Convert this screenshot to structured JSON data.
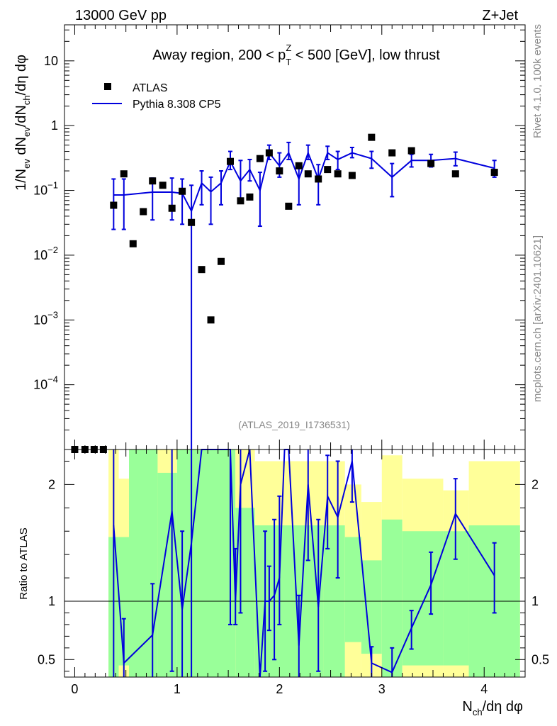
{
  "header": {
    "left": "13000 GeV pp",
    "right": "Z+Jet"
  },
  "side": {
    "rivet": "Rivet 4.1.0,  100k events",
    "mcplots": "mcplots.cern.ch [arXiv:2401.10621]"
  },
  "colors": {
    "mc": "#0000dd",
    "data": "#000000",
    "band_inner": "#99ff99",
    "band_outer": "#ffff99"
  },
  "chart_data": [
    {
      "type": "scatter",
      "title": "Away region, 200 < p_T^Z < 500 [GeV], low thrust",
      "title_parts": {
        "pre": "Away region, 200 < p",
        "sup": "Z",
        "sub": "T",
        "post": " < 500 [GeV], low thrust"
      },
      "watermark": "(ATLAS_2019_I1736531)",
      "ylabel": "1/N_ev dN_ev/dN_ch/dη dφ",
      "ylabel_parts": [
        "1/N",
        "ev",
        " dN",
        "ev",
        "/dN",
        "ch",
        "/dη dφ"
      ],
      "yscale": "log",
      "ylim": [
        1e-05,
        36
      ],
      "xlim": [
        -0.1,
        4.4
      ],
      "ytick_labels": [
        {
          "v": 10,
          "base": "10",
          "exp": ""
        },
        {
          "v": 1,
          "base": "1",
          "exp": ""
        },
        {
          "v": 0.1,
          "base": "10",
          "exp": "−1"
        },
        {
          "v": 0.01,
          "base": "10",
          "exp": "−2"
        },
        {
          "v": 0.001,
          "base": "10",
          "exp": "−3"
        },
        {
          "v": 0.0001,
          "base": "10",
          "exp": "−4"
        }
      ],
      "legend": {
        "data_label": "ATLAS",
        "mc_label": "Pythia 8.308 CP5",
        "position": "top-left"
      },
      "data_points": [
        {
          "x": 0.0,
          "y": 1e-05
        },
        {
          "x": 0.1,
          "y": 1e-05
        },
        {
          "x": 0.19,
          "y": 1e-05
        },
        {
          "x": 0.28,
          "y": 1e-05
        },
        {
          "x": 0.38,
          "y": 0.059
        },
        {
          "x": 0.48,
          "y": 0.18
        },
        {
          "x": 0.57,
          "y": 0.015
        },
        {
          "x": 0.67,
          "y": 0.047
        },
        {
          "x": 0.76,
          "y": 0.14
        },
        {
          "x": 0.86,
          "y": 0.12
        },
        {
          "x": 0.95,
          "y": 0.053
        },
        {
          "x": 1.05,
          "y": 0.097
        },
        {
          "x": 1.14,
          "y": 0.032
        },
        {
          "x": 1.24,
          "y": 0.006
        },
        {
          "x": 1.33,
          "y": 0.001
        },
        {
          "x": 1.43,
          "y": 0.008
        },
        {
          "x": 1.52,
          "y": 0.28
        },
        {
          "x": 1.62,
          "y": 0.069
        },
        {
          "x": 1.71,
          "y": 0.079
        },
        {
          "x": 1.81,
          "y": 0.31
        },
        {
          "x": 1.9,
          "y": 0.38
        },
        {
          "x": 2.0,
          "y": 0.2
        },
        {
          "x": 2.09,
          "y": 0.057
        },
        {
          "x": 2.19,
          "y": 0.24
        },
        {
          "x": 2.28,
          "y": 0.18
        },
        {
          "x": 2.38,
          "y": 0.15
        },
        {
          "x": 2.47,
          "y": 0.21
        },
        {
          "x": 2.57,
          "y": 0.18
        },
        {
          "x": 2.71,
          "y": 0.17
        },
        {
          "x": 2.9,
          "y": 0.66
        },
        {
          "x": 3.1,
          "y": 0.38
        },
        {
          "x": 3.29,
          "y": 0.41
        },
        {
          "x": 3.48,
          "y": 0.26
        },
        {
          "x": 3.72,
          "y": 0.18
        },
        {
          "x": 4.1,
          "y": 0.19
        }
      ],
      "mc_points": [
        {
          "x": 0.38,
          "y": 0.085,
          "lo": 0.025,
          "hi": 0.15
        },
        {
          "x": 0.48,
          "y": 0.085,
          "lo": 0.025,
          "hi": 0.15
        },
        {
          "x": 0.76,
          "y": 0.094,
          "lo": 0.035,
          "hi": 0.155
        },
        {
          "x": 0.95,
          "y": 0.094,
          "lo": 0.035,
          "hi": 0.155
        },
        {
          "x": 1.05,
          "y": 0.09,
          "lo": 0.03,
          "hi": 0.15
        },
        {
          "x": 1.14,
          "y": 0.048,
          "lo": 1e-05,
          "hi": 0.12
        },
        {
          "x": 1.24,
          "y": 0.13,
          "lo": 0.06,
          "hi": 0.2
        },
        {
          "x": 1.33,
          "y": 0.095,
          "lo": 0.03,
          "hi": 0.16
        },
        {
          "x": 1.43,
          "y": 0.13,
          "lo": 0.06,
          "hi": 0.2
        },
        {
          "x": 1.52,
          "y": 0.28,
          "lo": 0.21,
          "hi": 0.4
        },
        {
          "x": 1.62,
          "y": 0.14,
          "lo": 0.07,
          "hi": 0.29
        },
        {
          "x": 1.71,
          "y": 0.21,
          "lo": 0.14,
          "hi": 0.3
        },
        {
          "x": 1.81,
          "y": 0.1,
          "lo": 0.028,
          "hi": 0.19
        },
        {
          "x": 1.9,
          "y": 0.38,
          "lo": 0.3,
          "hi": 0.5
        },
        {
          "x": 2.0,
          "y": 0.24,
          "lo": 0.16,
          "hi": 0.38
        },
        {
          "x": 2.09,
          "y": 0.38,
          "lo": 0.3,
          "hi": 0.55
        },
        {
          "x": 2.19,
          "y": 0.15,
          "lo": 0.06,
          "hi": 0.25
        },
        {
          "x": 2.28,
          "y": 0.38,
          "lo": 0.3,
          "hi": 0.5
        },
        {
          "x": 2.38,
          "y": 0.15,
          "lo": 0.06,
          "hi": 0.25
        },
        {
          "x": 2.47,
          "y": 0.38,
          "lo": 0.3,
          "hi": 0.48
        },
        {
          "x": 2.57,
          "y": 0.3,
          "lo": 0.21,
          "hi": 0.4
        },
        {
          "x": 2.71,
          "y": 0.38,
          "lo": 0.32,
          "hi": 0.46
        },
        {
          "x": 2.9,
          "y": 0.31,
          "lo": 0.22,
          "hi": 0.4
        },
        {
          "x": 3.1,
          "y": 0.16,
          "lo": 0.08,
          "hi": 0.26
        },
        {
          "x": 3.29,
          "y": 0.29,
          "lo": 0.23,
          "hi": 0.36
        },
        {
          "x": 3.48,
          "y": 0.29,
          "lo": 0.23,
          "hi": 0.36
        },
        {
          "x": 3.72,
          "y": 0.31,
          "lo": 0.24,
          "hi": 0.39
        },
        {
          "x": 4.1,
          "y": 0.22,
          "lo": 0.16,
          "hi": 0.29
        }
      ]
    },
    {
      "type": "line",
      "ylabel": "Ratio to ATLAS",
      "xlabel": "N_ch/dη dφ",
      "xlabel_parts": [
        "N",
        "ch",
        "/dη dφ"
      ],
      "xlim": [
        -0.1,
        4.4
      ],
      "ylim": [
        0.35,
        2.3
      ],
      "xticks": [
        0,
        1,
        2,
        3,
        4
      ],
      "xtick_labels": [
        "0",
        "1",
        "2",
        "3",
        "4"
      ],
      "yticks": [
        0.5,
        1,
        2
      ],
      "ytick_labels": [
        "0.5",
        "1",
        "2"
      ],
      "reference": 1,
      "bands": [
        {
          "x0": 0.33,
          "x1": 0.43,
          "g_lo": 0.35,
          "g_hi": 1.55,
          "y_lo": 0.35,
          "y_hi": 2.3
        },
        {
          "x0": 0.43,
          "x1": 0.53,
          "g_lo": 0.45,
          "g_hi": 1.55,
          "y_lo": 0.35,
          "y_hi": 2.05
        },
        {
          "x0": 0.53,
          "x1": 0.81,
          "g_lo": 0.35,
          "g_hi": 2.3,
          "y_lo": 0.35,
          "y_hi": 2.3
        },
        {
          "x0": 0.81,
          "x1": 1.0,
          "g_lo": 0.35,
          "g_hi": 2.1,
          "y_lo": 0.35,
          "y_hi": 2.3
        },
        {
          "x0": 1.0,
          "x1": 1.57,
          "g_lo": 0.35,
          "g_hi": 2.3,
          "y_lo": 0.35,
          "y_hi": 2.3
        },
        {
          "x0": 1.57,
          "x1": 1.76,
          "g_lo": 0.35,
          "g_hi": 1.8,
          "y_lo": 0.35,
          "y_hi": 2.3
        },
        {
          "x0": 1.76,
          "x1": 2.43,
          "g_lo": 0.35,
          "g_hi": 1.65,
          "y_lo": 0.35,
          "y_hi": 2.2
        },
        {
          "x0": 2.43,
          "x1": 2.64,
          "g_lo": 0.35,
          "g_hi": 1.65,
          "y_lo": 0.35,
          "y_hi": 2.2
        },
        {
          "x0": 2.64,
          "x1": 2.8,
          "g_lo": 0.65,
          "g_hi": 1.55,
          "y_lo": 0.35,
          "y_hi": 2.0
        },
        {
          "x0": 2.8,
          "x1": 3.0,
          "g_lo": 0.55,
          "g_hi": 1.35,
          "y_lo": 0.35,
          "y_hi": 1.85
        },
        {
          "x0": 3.0,
          "x1": 3.2,
          "g_lo": 0.35,
          "g_hi": 1.7,
          "y_lo": 0.35,
          "y_hi": 2.25
        },
        {
          "x0": 3.2,
          "x1": 3.6,
          "g_lo": 0.45,
          "g_hi": 1.6,
          "y_lo": 0.35,
          "y_hi": 2.05
        },
        {
          "x0": 3.6,
          "x1": 3.85,
          "g_lo": 0.45,
          "g_hi": 1.6,
          "y_lo": 0.35,
          "y_hi": 1.95
        },
        {
          "x0": 3.85,
          "x1": 4.35,
          "g_lo": 0.35,
          "g_hi": 1.65,
          "y_lo": 0.35,
          "y_hi": 2.2
        }
      ],
      "mc_ratio": [
        {
          "x": 0.38,
          "y": 1.65,
          "lo": 0.35,
          "hi": 2.3
        },
        {
          "x": 0.48,
          "y": 0.47,
          "lo": 0.35,
          "hi": 0.85
        },
        {
          "x": 0.76,
          "y": 0.71,
          "lo": 0.35,
          "hi": 1.15
        },
        {
          "x": 0.95,
          "y": 1.77,
          "lo": 0.4,
          "hi": 2.3
        },
        {
          "x": 1.05,
          "y": 0.93,
          "lo": 0.35,
          "hi": 1.6
        },
        {
          "x": 1.14,
          "y": 1.5,
          "lo": 0.35,
          "hi": 2.3
        },
        {
          "x": 1.24,
          "y": 2.3,
          "lo": 2.3,
          "hi": 2.3
        },
        {
          "x": 1.52,
          "y": 2.3,
          "lo": 0.8,
          "hi": 2.3
        },
        {
          "x": 1.57,
          "y": 1.0,
          "lo": 0.8,
          "hi": 1.45
        },
        {
          "x": 1.62,
          "y": 2.0,
          "lo": 0.9,
          "hi": 2.3
        },
        {
          "x": 1.71,
          "y": 2.3,
          "lo": 2.3,
          "hi": 2.3
        },
        {
          "x": 1.81,
          "y": 0.35,
          "lo": 0.35,
          "hi": 0.35
        },
        {
          "x": 1.86,
          "y": 1.0,
          "lo": 0.4,
          "hi": 1.6
        },
        {
          "x": 1.9,
          "y": 1.0,
          "lo": 0.75,
          "hi": 1.3
        },
        {
          "x": 1.95,
          "y": 1.05,
          "lo": 0.5,
          "hi": 1.7
        },
        {
          "x": 2.0,
          "y": 1.2,
          "lo": 0.8,
          "hi": 1.9
        },
        {
          "x": 2.05,
          "y": 2.3,
          "lo": 2.3,
          "hi": 2.3
        },
        {
          "x": 2.09,
          "y": 2.3,
          "lo": 2.3,
          "hi": 2.3
        },
        {
          "x": 2.19,
          "y": 0.62,
          "lo": 0.35,
          "hi": 1.05
        },
        {
          "x": 2.28,
          "y": 2.0,
          "lo": 1.35,
          "hi": 2.3
        },
        {
          "x": 2.38,
          "y": 0.95,
          "lo": 0.4,
          "hi": 1.7
        },
        {
          "x": 2.47,
          "y": 1.9,
          "lo": 1.45,
          "hi": 2.25
        },
        {
          "x": 2.57,
          "y": 1.72,
          "lo": 1.2,
          "hi": 2.2
        },
        {
          "x": 2.71,
          "y": 2.2,
          "lo": 1.85,
          "hi": 2.3
        },
        {
          "x": 2.9,
          "y": 0.47,
          "lo": 0.33,
          "hi": 0.61
        },
        {
          "x": 3.1,
          "y": 0.39,
          "lo": 0.22,
          "hi": 0.6
        },
        {
          "x": 3.29,
          "y": 0.77,
          "lo": 0.59,
          "hi": 0.92
        },
        {
          "x": 3.48,
          "y": 1.14,
          "lo": 0.89,
          "hi": 1.42
        },
        {
          "x": 3.72,
          "y": 1.75,
          "lo": 1.36,
          "hi": 2.05
        },
        {
          "x": 4.1,
          "y": 1.22,
          "lo": 0.9,
          "hi": 1.5
        }
      ]
    }
  ]
}
